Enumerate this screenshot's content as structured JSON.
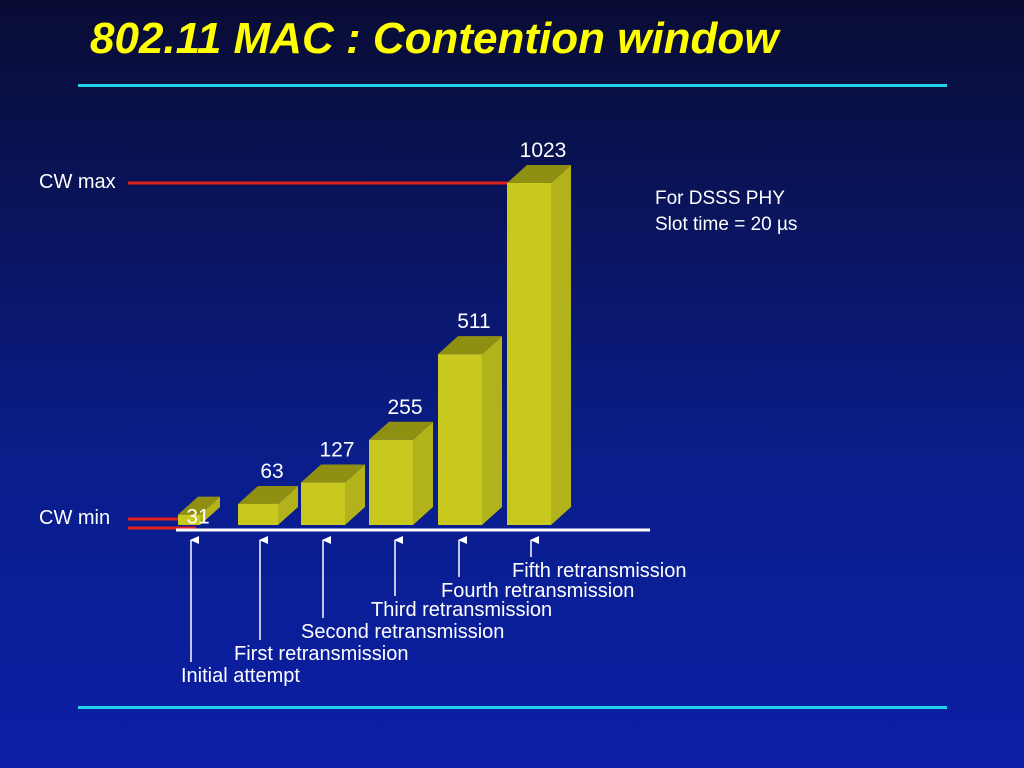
{
  "title": "802.11 MAC : Contention window",
  "note": {
    "line1": "For DSSS PHY",
    "line2": "Slot time = 20 µs"
  },
  "chart_data": {
    "type": "bar",
    "title": "",
    "categories": [
      "Initial attempt",
      "First retransmission",
      "Second retransmission",
      "Third retransmission",
      "Fourth retransmission",
      "Fifth retransmission"
    ],
    "values": [
      31,
      63,
      127,
      255,
      511,
      1023
    ],
    "value_labels": [
      "31",
      "63",
      "127",
      "255",
      "511",
      "1023"
    ],
    "reference_lines": [
      {
        "label": "CW max",
        "value": 1023
      },
      {
        "label": "CW min",
        "value": 31
      }
    ],
    "ylim": [
      0,
      1023
    ],
    "grid": false,
    "bar_color": "#c8c81e",
    "line_color": "#e0201c"
  }
}
